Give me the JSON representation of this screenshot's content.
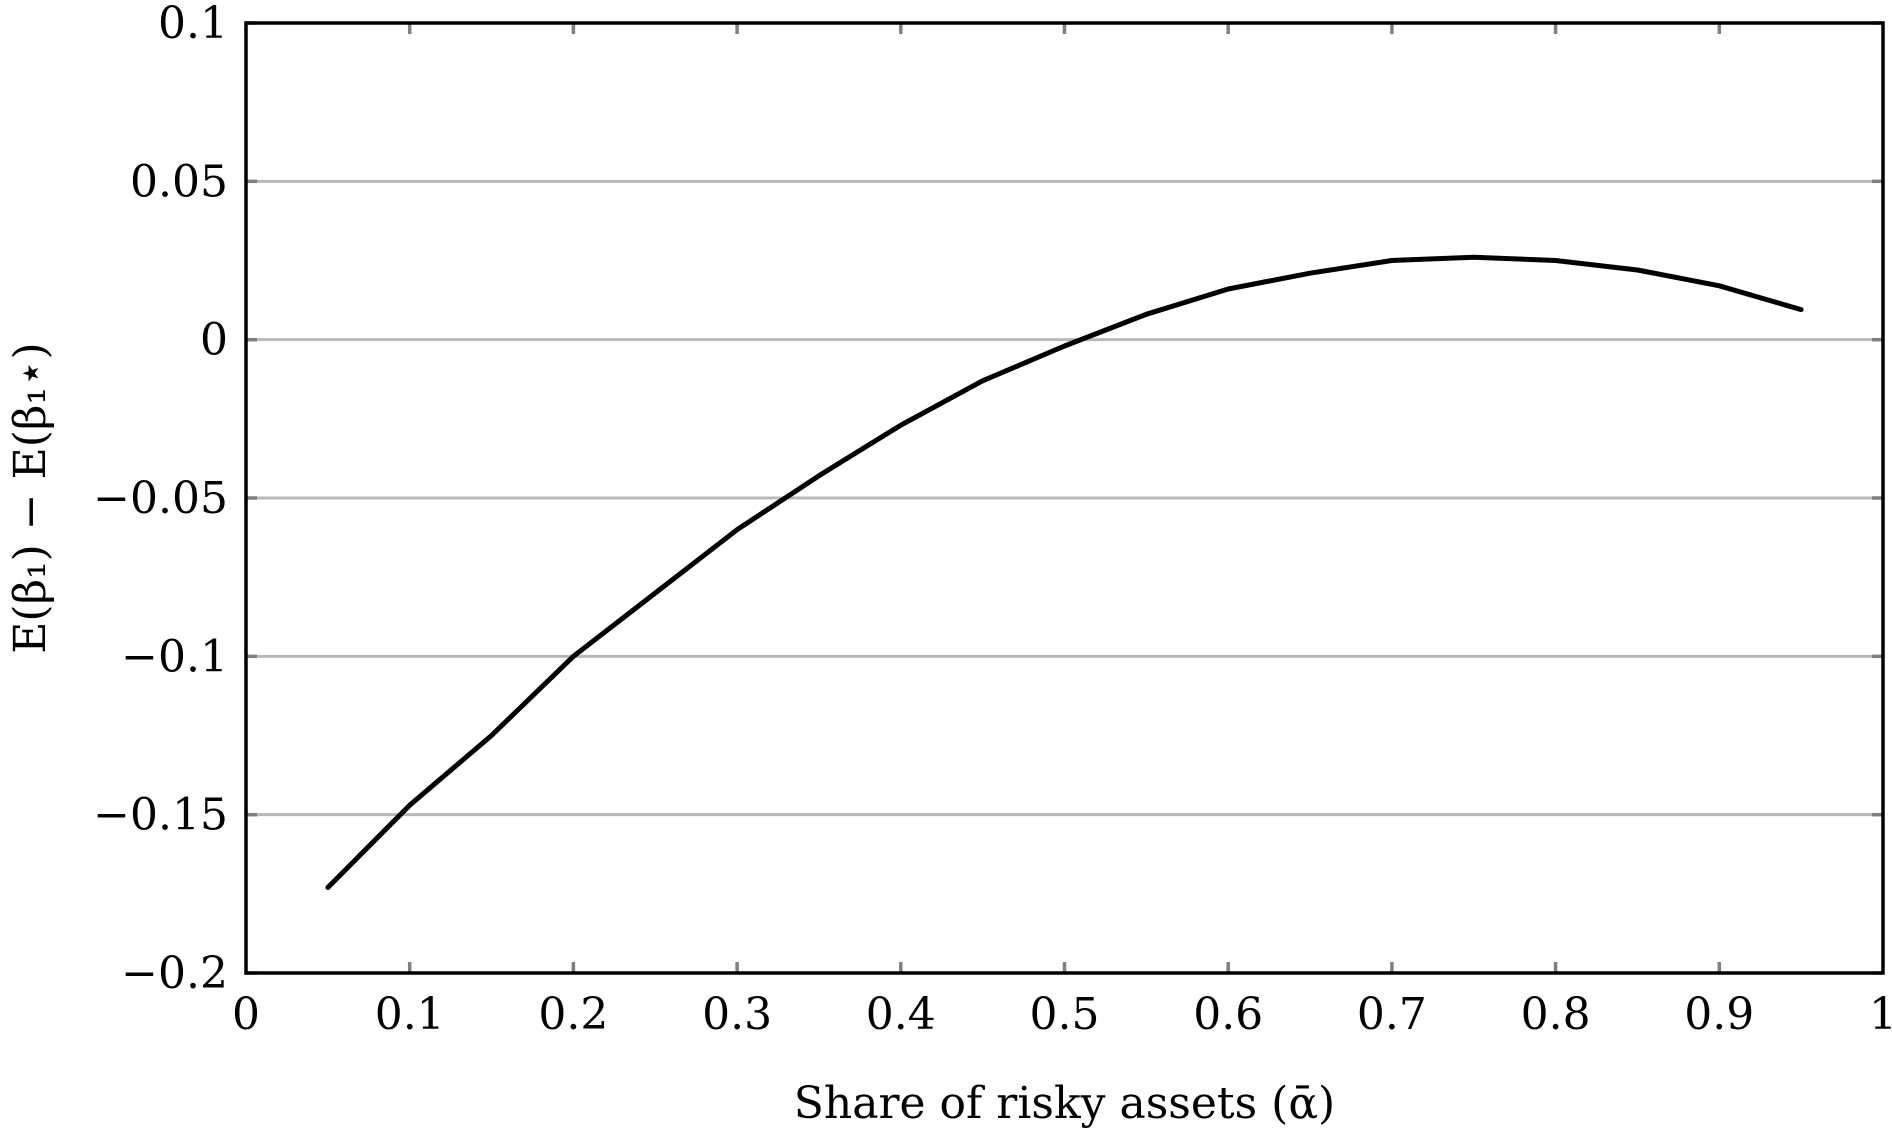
{
  "chart_data": {
    "type": "line",
    "title": "",
    "xlabel": "Share of risky assets (ᾱ)",
    "ylabel": "E(β₁) − E(β₁⋆)",
    "xlim": [
      0,
      1
    ],
    "ylim": [
      -0.2,
      0.1
    ],
    "grid": {
      "x": false,
      "y": true
    },
    "x_ticks": [
      {
        "value": 0,
        "label": "0"
      },
      {
        "value": 0.1,
        "label": "0.1"
      },
      {
        "value": 0.2,
        "label": "0.2"
      },
      {
        "value": 0.3,
        "label": "0.3"
      },
      {
        "value": 0.4,
        "label": "0.4"
      },
      {
        "value": 0.5,
        "label": "0.5"
      },
      {
        "value": 0.6,
        "label": "0.6"
      },
      {
        "value": 0.7,
        "label": "0.7"
      },
      {
        "value": 0.8,
        "label": "0.8"
      },
      {
        "value": 0.9,
        "label": "0.9"
      },
      {
        "value": 1,
        "label": "1"
      }
    ],
    "y_ticks": [
      {
        "value": 0.1,
        "label": "0.1"
      },
      {
        "value": 0.05,
        "label": "0.05"
      },
      {
        "value": 0,
        "label": "0"
      },
      {
        "value": -0.05,
        "label": "−0.05"
      },
      {
        "value": -0.1,
        "label": "−0.1"
      },
      {
        "value": -0.15,
        "label": "−0.15"
      },
      {
        "value": -0.2,
        "label": "−0.2"
      }
    ],
    "series": [
      {
        "color": "#000000",
        "x": [
          0.05,
          0.1,
          0.15,
          0.2,
          0.25,
          0.3,
          0.35,
          0.4,
          0.45,
          0.5,
          0.55,
          0.6,
          0.65,
          0.7,
          0.75,
          0.8,
          0.85,
          0.9,
          0.95
        ],
        "y": [
          -0.173,
          -0.147,
          -0.125,
          -0.1,
          -0.08,
          -0.06,
          -0.043,
          -0.027,
          -0.013,
          -0.002,
          0.008,
          0.016,
          0.021,
          0.025,
          0.026,
          0.025,
          0.022,
          0.017,
          0.0095
        ]
      }
    ]
  }
}
